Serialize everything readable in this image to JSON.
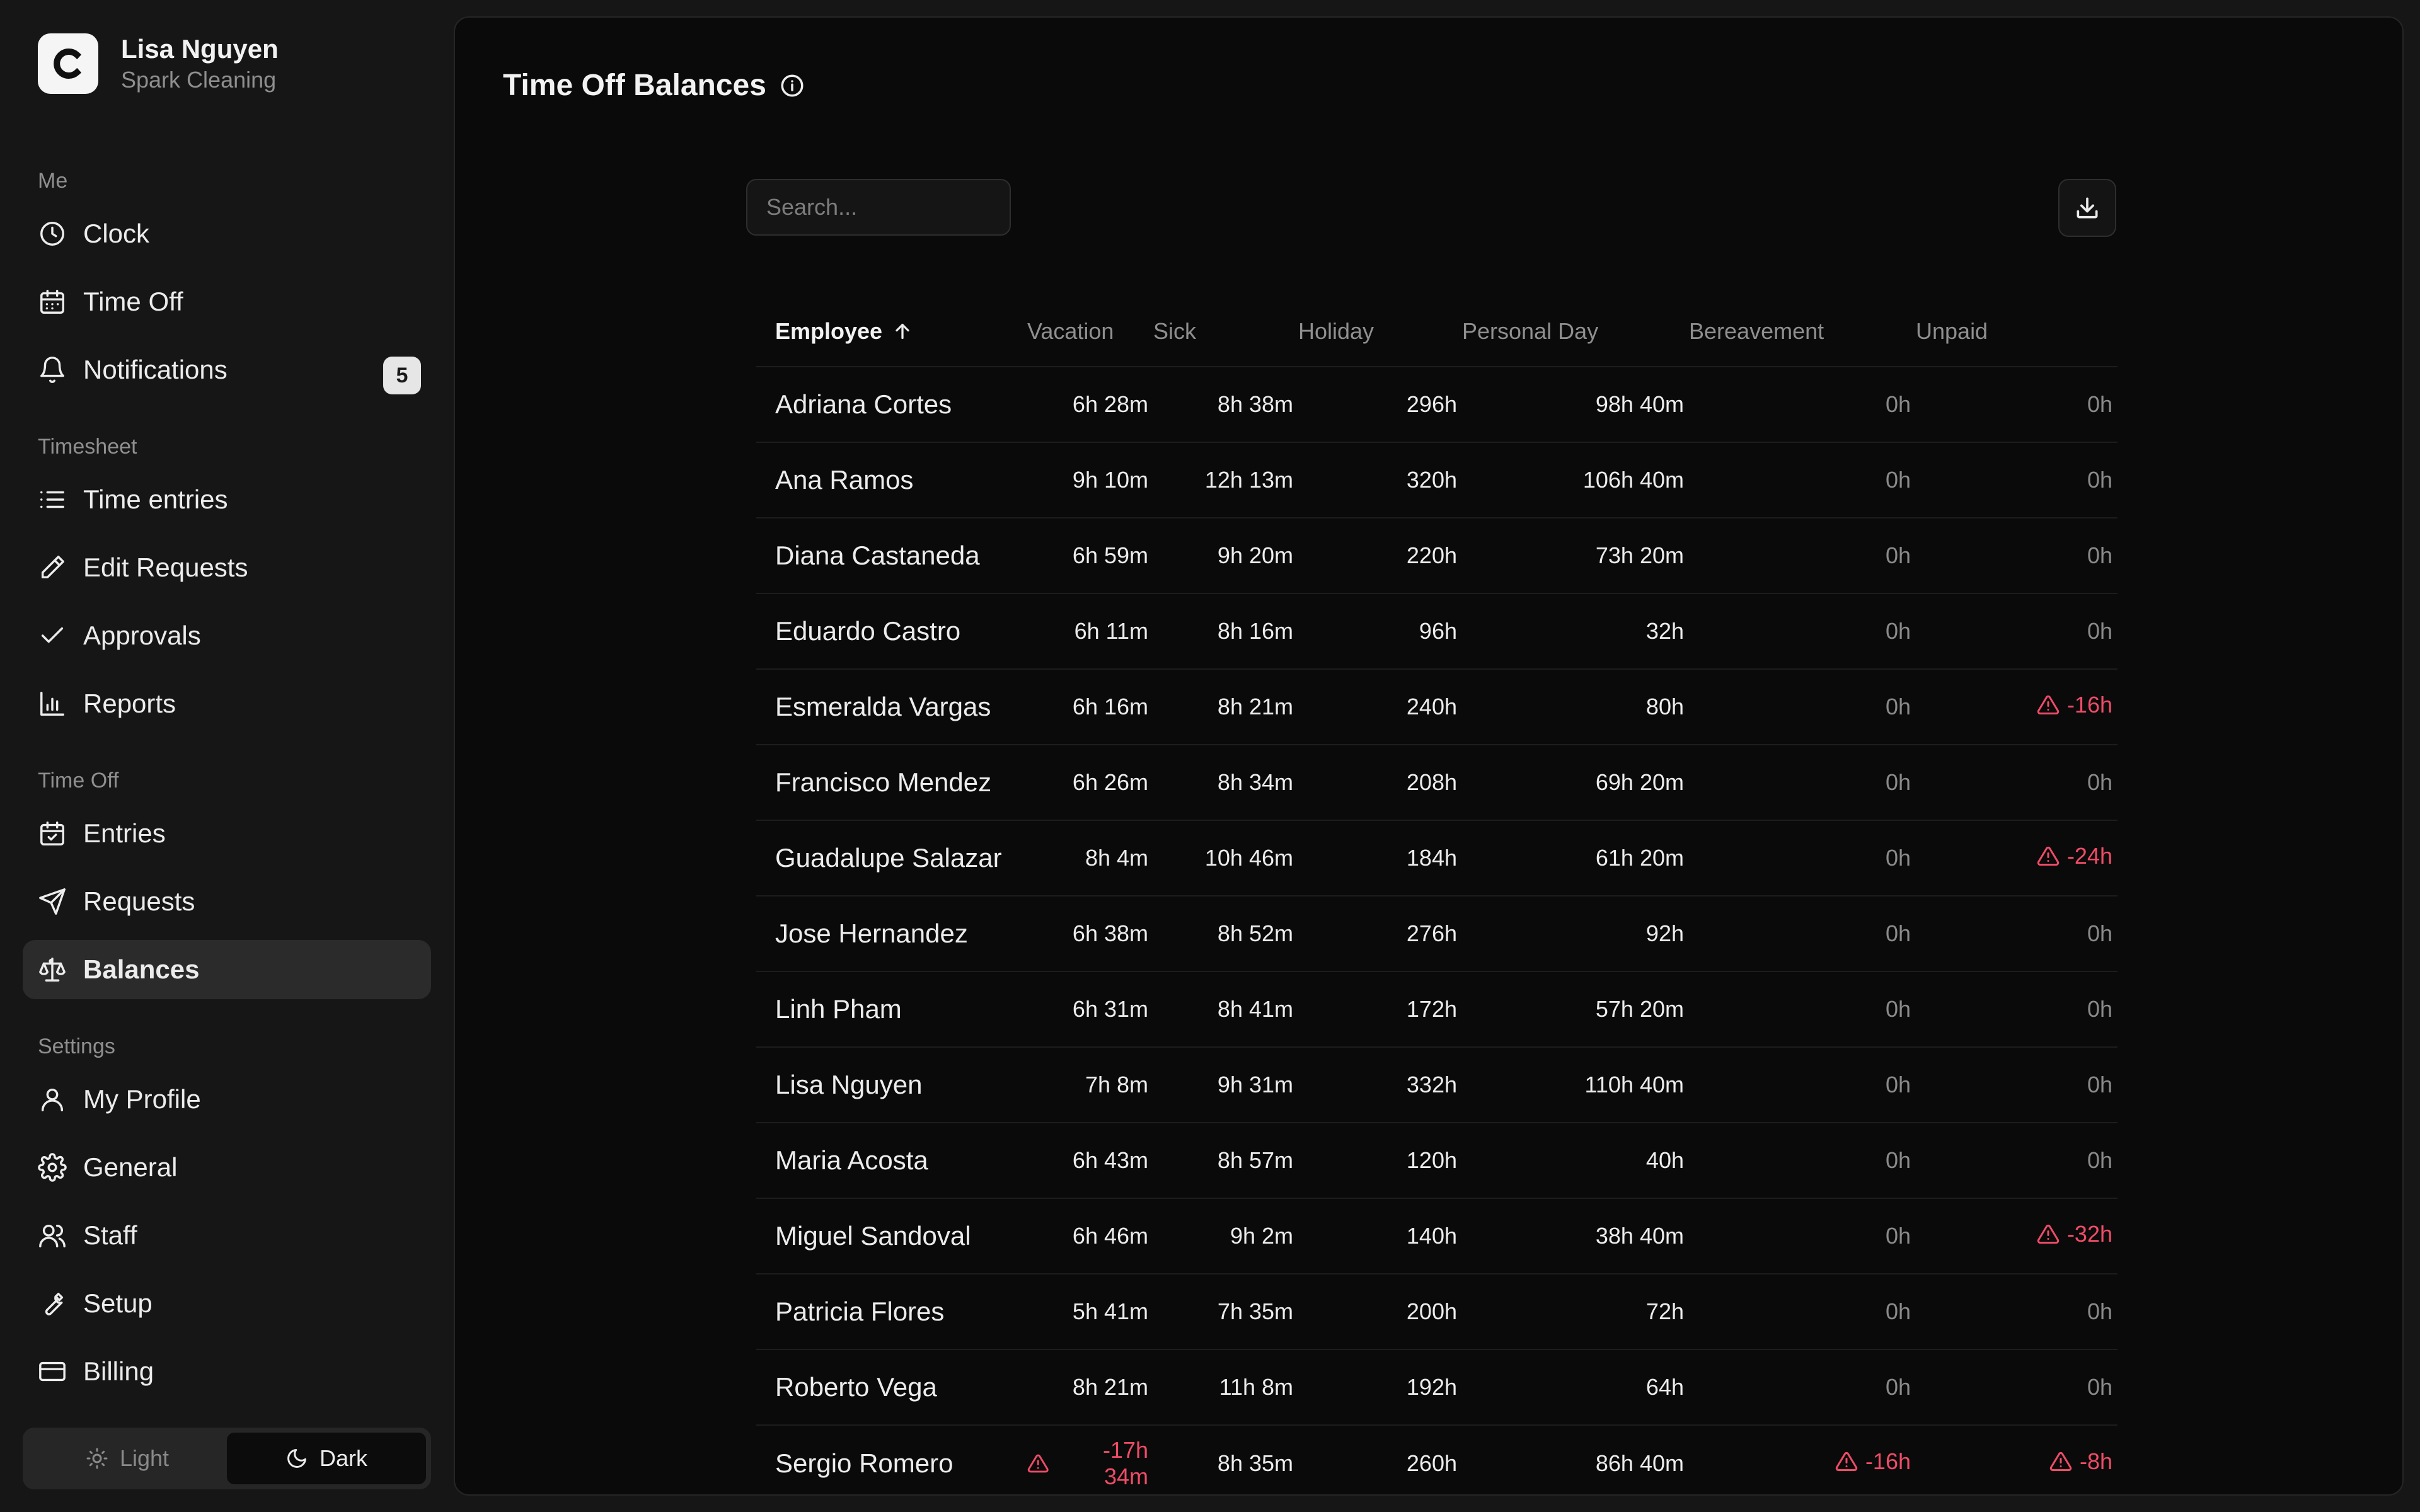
{
  "user": {
    "name": "Lisa Nguyen",
    "org": "Spark Cleaning",
    "logo_letter": "C"
  },
  "sidebar": {
    "sections": [
      {
        "label": "Me",
        "items": [
          {
            "label": "Clock",
            "icon": "clock-icon"
          },
          {
            "label": "Time Off",
            "icon": "calendar-icon"
          },
          {
            "label": "Notifications",
            "icon": "bell-icon",
            "badge": "5"
          }
        ]
      },
      {
        "label": "Timesheet",
        "items": [
          {
            "label": "Time entries",
            "icon": "list-icon"
          },
          {
            "label": "Edit Requests",
            "icon": "pencil-icon"
          },
          {
            "label": "Approvals",
            "icon": "check-icon"
          },
          {
            "label": "Reports",
            "icon": "bar-chart-icon"
          }
        ]
      },
      {
        "label": "Time Off",
        "items": [
          {
            "label": "Entries",
            "icon": "calendar-check-icon"
          },
          {
            "label": "Requests",
            "icon": "send-icon"
          },
          {
            "label": "Balances",
            "icon": "scale-icon",
            "active": true
          }
        ]
      },
      {
        "label": "Settings",
        "items": [
          {
            "label": "My Profile",
            "icon": "user-icon"
          },
          {
            "label": "General",
            "icon": "gear-icon"
          },
          {
            "label": "Staff",
            "icon": "users-icon"
          },
          {
            "label": "Setup",
            "icon": "wrench-icon"
          },
          {
            "label": "Billing",
            "icon": "credit-card-icon"
          }
        ]
      }
    ],
    "theme": {
      "light_label": "Light",
      "dark_label": "Dark",
      "selected": "dark"
    }
  },
  "page": {
    "title": "Time Off Balances",
    "search_placeholder": "Search...",
    "negative_color": "#ef4c68"
  },
  "table": {
    "columns": [
      "Employee",
      "Vacation",
      "Sick",
      "Holiday",
      "Personal Day",
      "Bereavement",
      "Unpaid"
    ],
    "sort": {
      "column": "Employee",
      "direction": "ascending"
    },
    "rows": [
      [
        "Adriana Cortes",
        "6h 28m",
        "8h 38m",
        "296h",
        "98h 40m",
        "0h",
        "0h"
      ],
      [
        "Ana Ramos",
        "9h 10m",
        "12h 13m",
        "320h",
        "106h 40m",
        "0h",
        "0h"
      ],
      [
        "Diana Castaneda",
        "6h 59m",
        "9h 20m",
        "220h",
        "73h 20m",
        "0h",
        "0h"
      ],
      [
        "Eduardo Castro",
        "6h 11m",
        "8h 16m",
        "96h",
        "32h",
        "0h",
        "0h"
      ],
      [
        "Esmeralda Vargas",
        "6h 16m",
        "8h 21m",
        "240h",
        "80h",
        "0h",
        "-16h"
      ],
      [
        "Francisco Mendez",
        "6h 26m",
        "8h 34m",
        "208h",
        "69h 20m",
        "0h",
        "0h"
      ],
      [
        "Guadalupe Salazar",
        "8h 4m",
        "10h 46m",
        "184h",
        "61h 20m",
        "0h",
        "-24h"
      ],
      [
        "Jose Hernandez",
        "6h 38m",
        "8h 52m",
        "276h",
        "92h",
        "0h",
        "0h"
      ],
      [
        "Linh Pham",
        "6h 31m",
        "8h 41m",
        "172h",
        "57h 20m",
        "0h",
        "0h"
      ],
      [
        "Lisa Nguyen",
        "7h 8m",
        "9h 31m",
        "332h",
        "110h 40m",
        "0h",
        "0h"
      ],
      [
        "Maria Acosta",
        "6h 43m",
        "8h 57m",
        "120h",
        "40h",
        "0h",
        "0h"
      ],
      [
        "Miguel Sandoval",
        "6h 46m",
        "9h 2m",
        "140h",
        "38h 40m",
        "0h",
        "-32h"
      ],
      [
        "Patricia Flores",
        "5h 41m",
        "7h 35m",
        "200h",
        "72h",
        "0h",
        "0h"
      ],
      [
        "Roberto Vega",
        "8h 21m",
        "11h 8m",
        "192h",
        "64h",
        "0h",
        "0h"
      ],
      [
        "Sergio Romero",
        "-17h 34m",
        "8h 35m",
        "260h",
        "86h 40m",
        "-16h",
        "-8h"
      ]
    ]
  }
}
